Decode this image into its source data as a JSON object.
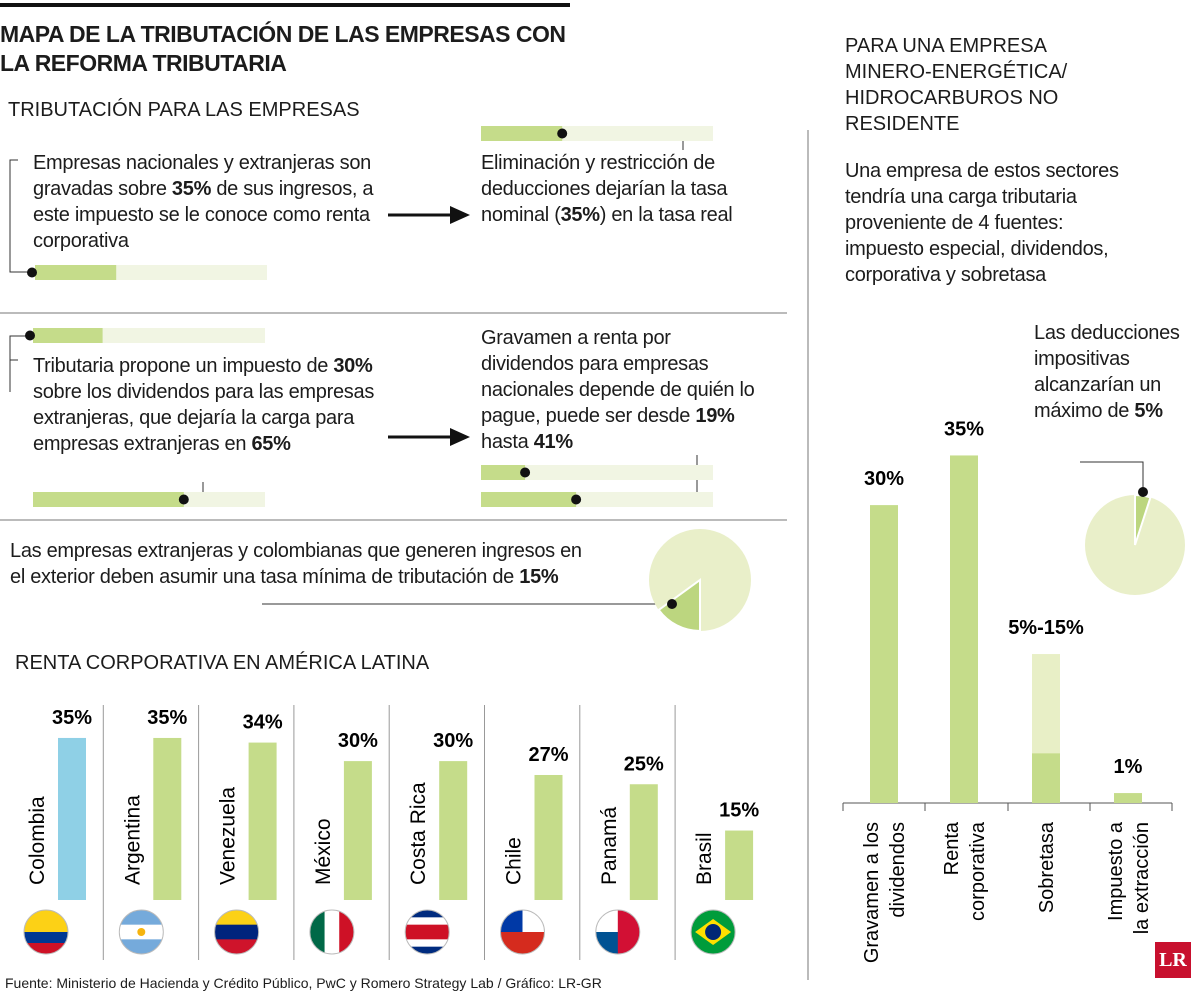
{
  "title": "MAPA DE LA TRIBUTACIÓN DE LAS EMPRESAS CON LA REFORMA TRIBUTARIA",
  "companies": {
    "heading": "TRIBUTACIÓN PARA LAS EMPRESAS",
    "blocks": [
      {
        "parts": [
          {
            "text": "Empresas nacionales y extranjeras son gravadas sobre "
          },
          {
            "value": 35,
            "label": "35%"
          },
          {
            "text": " de sus ingresos, a este impuesto se le conoce como renta corporativa"
          }
        ]
      },
      {
        "parts": [
          {
            "text": "Eliminación y restricción de deducciones dejarían la tasa nominal ("
          },
          {
            "value": 35,
            "label": "35%"
          },
          {
            "text": ") en la tasa real"
          }
        ]
      },
      {
        "parts": [
          {
            "text": "Tributaria propone un impuesto de "
          },
          {
            "value": 30,
            "label": "30%"
          },
          {
            "text": " sobre los dividendos para las empresas extranjeras, que dejaría la carga para empresas extranjeras en "
          },
          {
            "value": 65,
            "label": "65%"
          }
        ]
      },
      {
        "parts": [
          {
            "text": "Gravamen a renta por dividendos para empresas nacionales depende de quién lo pague, puede ser desde "
          },
          {
            "value": 19,
            "label": "19%"
          },
          {
            "text": " hasta "
          },
          {
            "value": 41,
            "label": "41%"
          }
        ]
      },
      {
        "parts": [
          {
            "text": "Las empresas extranjeras y colombianas que generen ingresos en el exterior deben asumir una tasa mínima de tributación de "
          },
          {
            "value": 15,
            "label": "15%"
          }
        ]
      }
    ]
  },
  "chart_data": [
    {
      "type": "bar",
      "title": "RENTA CORPORATIVA EN AMÉRICA LATINA",
      "categories": [
        "Colombia",
        "Argentina",
        "Venezuela",
        "México",
        "Costa Rica",
        "Chile",
        "Panamá",
        "Brasil"
      ],
      "values": [
        35,
        35,
        34,
        30,
        30,
        27,
        25,
        15
      ],
      "value_labels": [
        "35%",
        "35%",
        "34%",
        "30%",
        "30%",
        "27%",
        "25%",
        "15%"
      ],
      "colors": [
        "#8fd0e6",
        "#c5dc8a",
        "#c5dc8a",
        "#c5dc8a",
        "#c5dc8a",
        "#c5dc8a",
        "#c5dc8a",
        "#c5dc8a"
      ]
    },
    {
      "type": "bar",
      "categories": [
        [
          "Gravamen a los",
          "dividendos"
        ],
        [
          "Renta",
          "corporativa"
        ],
        [
          "Sobretasa"
        ],
        [
          "Impuesto a",
          "la extracción"
        ]
      ],
      "series": [
        {
          "color": "#e8efc6",
          "values": [
            null,
            null,
            15,
            null
          ]
        },
        {
          "color": "#c5dc8a",
          "values": [
            30,
            35,
            5,
            1
          ]
        }
      ],
      "value_labels": [
        "30%",
        "35%",
        "5%-15%",
        "1%"
      ]
    }
  ],
  "mining": {
    "heading": "PARA UNA EMPRESA MINERO-ENERGÉTICA/ HIDROCARBUROS NO RESIDENTE",
    "text": "Una empresa de estos sectores tendría una carga tributaria proveniente de 4 fuentes: impuesto especial, dividendos, corporativa y sobretasa",
    "deductions": {
      "parts": [
        {
          "text": "Las deducciones impositivas alcanzarían un máximo de "
        },
        {
          "value": 5,
          "label": "5%"
        }
      ]
    }
  },
  "source": "Fuente: Ministerio de Hacienda y Crédito Público, PwC y Romero Strategy Lab / Gráfico: LR-GR",
  "logo": "LR"
}
